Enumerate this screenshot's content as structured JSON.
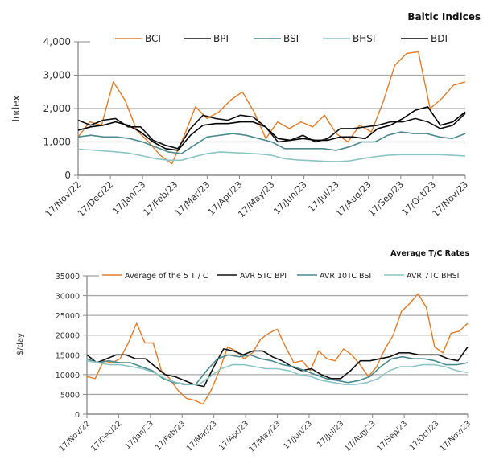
{
  "chart_data": [
    {
      "type": "line",
      "title": "Baltic Indices",
      "xlabel": "",
      "ylabel": "Index",
      "ylim": [
        0,
        4000
      ],
      "yticks": [
        "0",
        "1,000",
        "2,000",
        "3,000",
        "4,000"
      ],
      "ytick_values": [
        0,
        1000,
        2000,
        3000,
        4000
      ],
      "grid": "horizontal",
      "legend_position": "top",
      "categories": [
        "17/Nov/22",
        "17/Dec/22",
        "17/Jan/23",
        "17/Feb/23",
        "17/Mar/23",
        "17/Apr/23",
        "17/May/23",
        "17/Jun/23",
        "17/Jul/23",
        "17/Aug/23",
        "17/Sep/23",
        "17/Oct/23",
        "17/Nov/23"
      ],
      "x": [
        0,
        0.5,
        1,
        1.5,
        2,
        2.5,
        3,
        3.5,
        4,
        4.5,
        5,
        5.5,
        6,
        6.5,
        7,
        7.5,
        8,
        8.5,
        9,
        9.5,
        10,
        10.5,
        11,
        11.5,
        12
      ],
      "series": [
        {
          "name": "BCI",
          "color": "#e07b2a",
          "values": [
            1150,
            1600,
            1500,
            2800,
            2250,
            1350,
            1000,
            600,
            350,
            1150,
            2050,
            1700,
            1900,
            2250,
            2500,
            1900,
            1100,
            1600,
            1400,
            1600,
            1450,
            1800,
            1250,
            1000,
            1500,
            1300,
            2200,
            3300,
            3650,
            3700,
            2000,
            2300,
            2700,
            2800
          ]
        },
        {
          "name": "BPI",
          "color": "#111111",
          "values": [
            1650,
            1500,
            1650,
            1700,
            1450,
            1450,
            1050,
            900,
            800,
            1400,
            1800,
            1700,
            1650,
            1800,
            1750,
            1450,
            1000,
            1050,
            1200,
            1000,
            1100,
            1400,
            1400,
            1450,
            1500,
            1600,
            1600,
            1700,
            1600,
            1400,
            1500,
            1850
          ]
        },
        {
          "name": "BSI",
          "color": "#4e8a8c",
          "values": [
            1150,
            1200,
            1150,
            1150,
            1100,
            1000,
            850,
            700,
            650,
            900,
            1150,
            1200,
            1250,
            1200,
            1100,
            1000,
            800,
            800,
            800,
            800,
            750,
            850,
            1000,
            1000,
            1200,
            1300,
            1250,
            1250,
            1150,
            1100,
            1250
          ]
        },
        {
          "name": "BHSI",
          "color": "#8fc4c4",
          "values": [
            780,
            760,
            730,
            700,
            660,
            580,
            500,
            450,
            450,
            560,
            650,
            700,
            680,
            660,
            640,
            600,
            500,
            460,
            440,
            420,
            410,
            430,
            500,
            560,
            600,
            620,
            620,
            620,
            620,
            600,
            580
          ]
        },
        {
          "name": "BDI",
          "color": "#000000",
          "values": [
            1350,
            1450,
            1500,
            1600,
            1500,
            1300,
            1000,
            800,
            750,
            1200,
            1500,
            1550,
            1550,
            1600,
            1600,
            1450,
            1100,
            1050,
            1100,
            1050,
            1050,
            1150,
            1150,
            1100,
            1400,
            1500,
            1700,
            1950,
            2050,
            1500,
            1600,
            1900
          ]
        }
      ]
    },
    {
      "type": "line",
      "title": "Average T/C Rates",
      "xlabel": "",
      "ylabel": "$/day",
      "ylim": [
        0,
        35000
      ],
      "yticks": [
        "0",
        "5000",
        "10000",
        "15000",
        "20000",
        "25000",
        "30000",
        "35000"
      ],
      "ytick_values": [
        0,
        5000,
        10000,
        15000,
        20000,
        25000,
        30000,
        35000
      ],
      "grid": "horizontal",
      "legend_position": "top",
      "categories": [
        "17/Nov/22",
        "17/Dec/22",
        "17/Jan/23",
        "17/Feb/23",
        "17/Mar/23",
        "17/Apr/23",
        "17/May/23",
        "17/Jun/23",
        "17/Jul/23",
        "17/Aug/23",
        "17/Sep/23",
        "17/Oct/23",
        "17/Nov/23"
      ],
      "series": [
        {
          "name": "Average of the 5 T / C",
          "color": "#e07b2a",
          "values": [
            9500,
            9000,
            13500,
            13000,
            14000,
            18000,
            23000,
            18000,
            18000,
            11000,
            9000,
            6000,
            4000,
            3500,
            2500,
            6000,
            11000,
            17000,
            16000,
            14000,
            15500,
            19000,
            20500,
            21500,
            17000,
            13000,
            13500,
            11000,
            16000,
            14000,
            13500,
            16500,
            15000,
            12500,
            9500,
            12000,
            16500,
            20000,
            26000,
            28000,
            30500,
            27000,
            17000,
            15500,
            20500,
            21000,
            23000
          ]
        },
        {
          "name": "AVR 5TC BPI",
          "color": "#111111",
          "values": [
            15000,
            13000,
            14000,
            15000,
            15000,
            14000,
            14000,
            12000,
            10000,
            9500,
            8500,
            7500,
            7000,
            12000,
            16500,
            16000,
            15000,
            16000,
            16000,
            14500,
            13500,
            12000,
            11000,
            11500,
            10000,
            9000,
            9000,
            11000,
            13500,
            13500,
            14000,
            14500,
            15500,
            15500,
            15000,
            15000,
            15000,
            14000,
            13500,
            17000
          ]
        },
        {
          "name": "AVR 10TC BSI",
          "color": "#4e8a8c",
          "values": [
            14000,
            13000,
            13500,
            13000,
            13000,
            12000,
            11000,
            9000,
            8000,
            7500,
            7500,
            11000,
            14000,
            15000,
            14500,
            15000,
            14000,
            13500,
            12500,
            12000,
            11000,
            10000,
            9000,
            8500,
            8000,
            8500,
            9500,
            12000,
            14000,
            14500,
            14000,
            14000,
            13500,
            12500,
            12500,
            13000
          ]
        },
        {
          "name": "AVR 7TC BHSI",
          "color": "#8fc4c4",
          "values": [
            13500,
            13000,
            12500,
            12500,
            12000,
            11500,
            10500,
            9000,
            8000,
            7500,
            7500,
            9500,
            11500,
            12500,
            12500,
            12000,
            11500,
            11500,
            11000,
            10000,
            9500,
            8500,
            8000,
            7500,
            7500,
            8000,
            9000,
            11000,
            12000,
            12000,
            12500,
            12500,
            12000,
            11000,
            10500
          ]
        }
      ]
    }
  ]
}
